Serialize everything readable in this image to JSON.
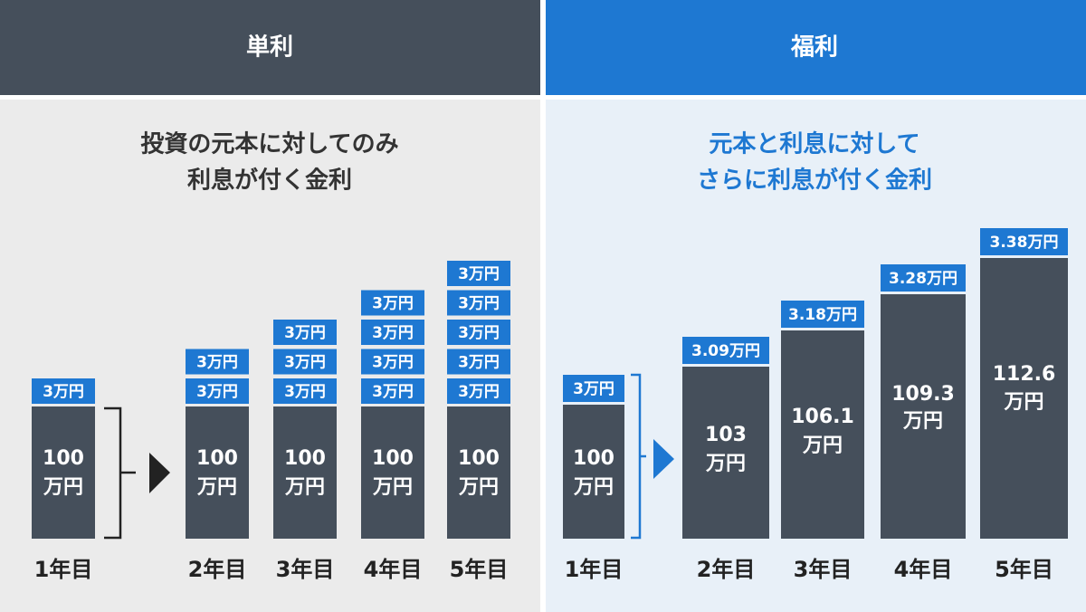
{
  "left": {
    "header": "単利",
    "description": [
      "投資の元本に対してのみ",
      "利息が付く金利"
    ],
    "years": [
      {
        "label": "1年目",
        "principal": [
          "100",
          "万円"
        ],
        "interest": [
          "3万円"
        ]
      },
      {
        "label": "2年目",
        "principal": [
          "100",
          "万円"
        ],
        "interest": [
          "3万円",
          "3万円"
        ]
      },
      {
        "label": "3年目",
        "principal": [
          "100",
          "万円"
        ],
        "interest": [
          "3万円",
          "3万円",
          "3万円"
        ]
      },
      {
        "label": "4年目",
        "principal": [
          "100",
          "万円"
        ],
        "interest": [
          "3万円",
          "3万円",
          "3万円",
          "3万円"
        ]
      },
      {
        "label": "5年目",
        "principal": [
          "100",
          "万円"
        ],
        "interest": [
          "3万円",
          "3万円",
          "3万円",
          "3万円",
          "3万円"
        ]
      }
    ]
  },
  "right": {
    "header": "福利",
    "description": [
      "元本と利息に対して",
      "さらに利息が付く金利"
    ],
    "years": [
      {
        "label": "1年目",
        "principal": [
          "100",
          "万円"
        ],
        "interest": [
          "3万円"
        ]
      },
      {
        "label": "2年目",
        "principal": [
          "103",
          "万円"
        ],
        "interest": [
          "3.09万円"
        ]
      },
      {
        "label": "3年目",
        "principal": [
          "106.1",
          "万円"
        ],
        "interest": [
          "3.18万円"
        ]
      },
      {
        "label": "4年目",
        "principal": [
          "109.3",
          "万円"
        ],
        "interest": [
          "3.28万円"
        ]
      },
      {
        "label": "5年目",
        "principal": [
          "112.6",
          "万円"
        ],
        "interest": [
          "3.38万円"
        ]
      }
    ]
  }
}
